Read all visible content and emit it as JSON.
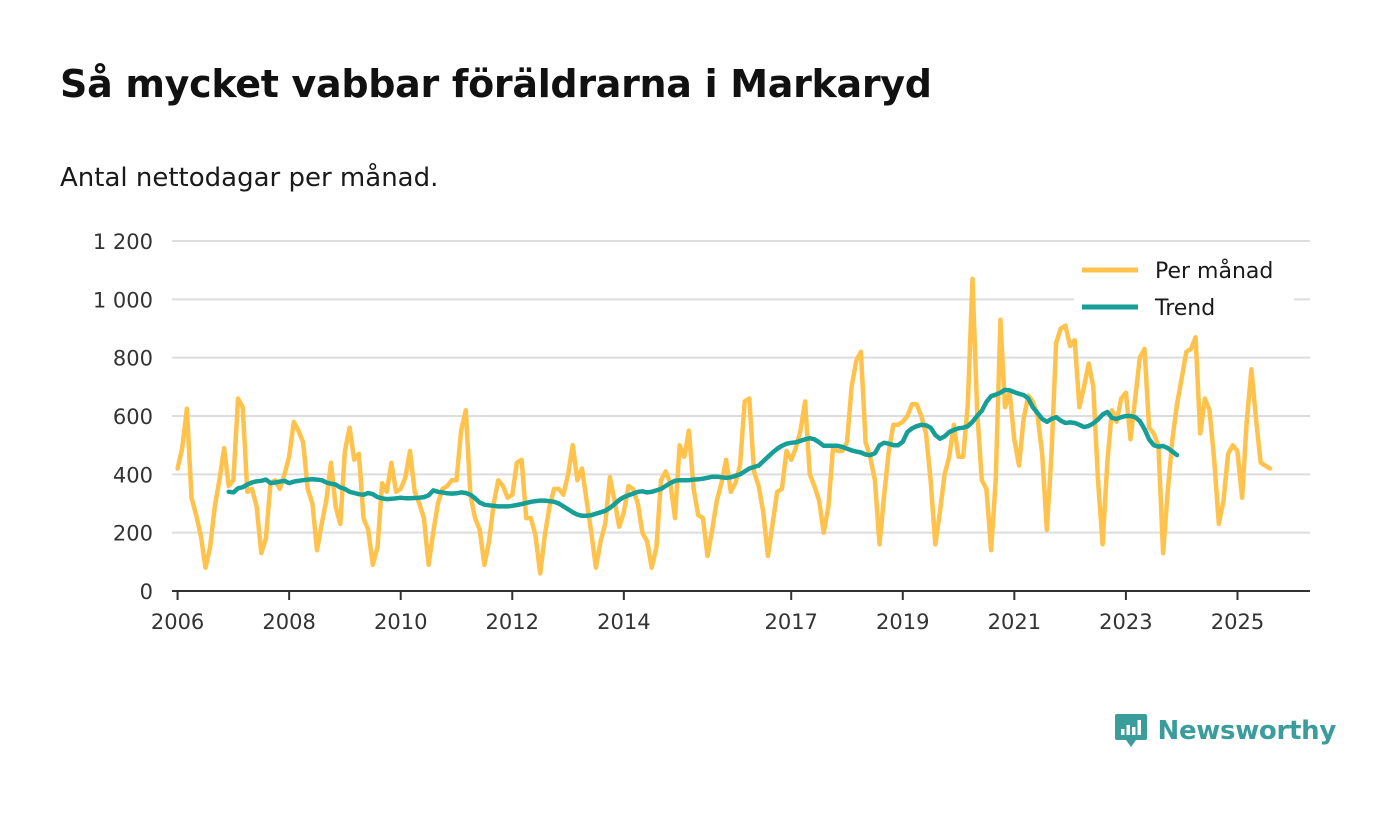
{
  "title": "Så mycket vabbar föräldrarna i Markaryd",
  "subtitle": "Antal nettodagar per månad.",
  "brand": {
    "name": "Newsworthy",
    "icon": "newsworthy-logo-icon"
  },
  "colors": {
    "monthly": "#ffc34d",
    "trend": "#169e97",
    "grid": "#dddddd",
    "axis": "#333333",
    "brand": "#3a9d9b"
  },
  "chart_data": {
    "type": "line",
    "title": "Så mycket vabbar föräldrarna i Markaryd",
    "subtitle": "Antal nettodagar per månad.",
    "xlabel": "",
    "ylabel": "",
    "ylim": [
      0,
      1200
    ],
    "xlim": [
      2005.9,
      2026.3
    ],
    "grid": true,
    "legend_position": "top-right",
    "y_ticks": [
      0,
      200,
      400,
      600,
      800,
      1000,
      1200
    ],
    "y_tick_labels": [
      "0",
      "200",
      "400",
      "600",
      "800",
      "1 000",
      "1 200"
    ],
    "x_ticks": [
      2006,
      2008,
      2010,
      2012,
      2014,
      2017,
      2019,
      2021,
      2023,
      2025
    ],
    "x_tick_labels": [
      "2006",
      "2008",
      "2010",
      "2012",
      "2014",
      "2017",
      "2019",
      "2021",
      "2023",
      "2025"
    ],
    "series": [
      {
        "name": "Per månad",
        "x_start": 2006,
        "step": 0.08333,
        "values": [
          420,
          490,
          625,
          320,
          260,
          190,
          80,
          150,
          290,
          380,
          490,
          360,
          380,
          660,
          630,
          340,
          350,
          290,
          130,
          180,
          370,
          380,
          350,
          400,
          460,
          580,
          550,
          510,
          350,
          300,
          140,
          230,
          310,
          440,
          290,
          230,
          480,
          560,
          450,
          470,
          250,
          210,
          90,
          150,
          370,
          340,
          440,
          340,
          350,
          390,
          480,
          340,
          300,
          250,
          90,
          200,
          300,
          350,
          360,
          380,
          380,
          550,
          620,
          330,
          250,
          210,
          90,
          170,
          300,
          380,
          360,
          320,
          330,
          440,
          450,
          250,
          250,
          190,
          60,
          190,
          290,
          350,
          350,
          330,
          400,
          500,
          380,
          420,
          310,
          200,
          80,
          170,
          230,
          390,
          310,
          220,
          270,
          360,
          350,
          300,
          200,
          170,
          80,
          150,
          380,
          410,
          370,
          250,
          500,
          460,
          550,
          350,
          260,
          250,
          120,
          210,
          310,
          370,
          450,
          340,
          370,
          430,
          650,
          660,
          410,
          360,
          270,
          120,
          230,
          340,
          350,
          480,
          450,
          490,
          550,
          650,
          400,
          360,
          310,
          200,
          290,
          490,
          480,
          480,
          510,
          700,
          790,
          820,
          510,
          460,
          380,
          160,
          330,
          480,
          570,
          570,
          580,
          600,
          640,
          640,
          600,
          540,
          380,
          160,
          270,
          400,
          460,
          570,
          460,
          460,
          640,
          1070,
          620,
          380,
          350,
          140,
          380,
          930,
          630,
          680,
          520,
          430,
          590,
          670,
          650,
          600,
          470,
          210,
          470,
          850,
          900,
          910,
          840,
          860,
          630,
          700,
          780,
          700,
          380,
          160,
          440,
          620,
          580,
          660,
          680,
          520,
          660,
          800,
          830,
          560,
          540,
          500,
          130,
          340,
          520,
          640,
          730,
          820,
          830,
          870,
          540,
          660,
          620,
          450,
          230,
          310,
          470,
          500,
          480,
          320,
          580,
          760,
          590,
          440,
          430,
          420
        ]
      },
      {
        "name": "Trend",
        "x_start": 2006.917,
        "step": 0.08333,
        "values": [
          340,
          338,
          352,
          356,
          365,
          372,
          376,
          378,
          382,
          370,
          372,
          375,
          378,
          370,
          375,
          378,
          380,
          382,
          383,
          382,
          380,
          372,
          368,
          365,
          355,
          350,
          340,
          336,
          332,
          330,
          336,
          332,
          322,
          318,
          315,
          316,
          318,
          320,
          318,
          318,
          319,
          320,
          322,
          328,
          345,
          340,
          338,
          335,
          334,
          335,
          338,
          336,
          330,
          318,
          303,
          296,
          294,
          292,
          290,
          290,
          290,
          292,
          295,
          298,
          302,
          306,
          308,
          310,
          310,
          308,
          306,
          300,
          290,
          280,
          270,
          262,
          258,
          258,
          260,
          265,
          270,
          275,
          285,
          298,
          312,
          322,
          328,
          334,
          340,
          342,
          338,
          340,
          345,
          350,
          360,
          370,
          378,
          380,
          380,
          380,
          382,
          383,
          385,
          388,
          392,
          392,
          390,
          388,
          390,
          395,
          400,
          410,
          420,
          425,
          430,
          445,
          460,
          475,
          488,
          498,
          505,
          508,
          510,
          515,
          520,
          524,
          520,
          510,
          498,
          498,
          498,
          498,
          494,
          488,
          482,
          478,
          475,
          468,
          466,
          472,
          500,
          508,
          505,
          500,
          500,
          512,
          545,
          558,
          565,
          570,
          568,
          560,
          535,
          522,
          530,
          545,
          552,
          558,
          560,
          565,
          580,
          600,
          618,
          648,
          668,
          673,
          680,
          690,
          688,
          682,
          676,
          672,
          660,
          630,
          610,
          590,
          580,
          590,
          596,
          584,
          576,
          578,
          576,
          570,
          562,
          566,
          575,
          588,
          605,
          614,
          594,
          590,
          596,
          600,
          600,
          596,
          583,
          555,
          520,
          500,
          495,
          497,
          490,
          478,
          466
        ]
      }
    ]
  }
}
